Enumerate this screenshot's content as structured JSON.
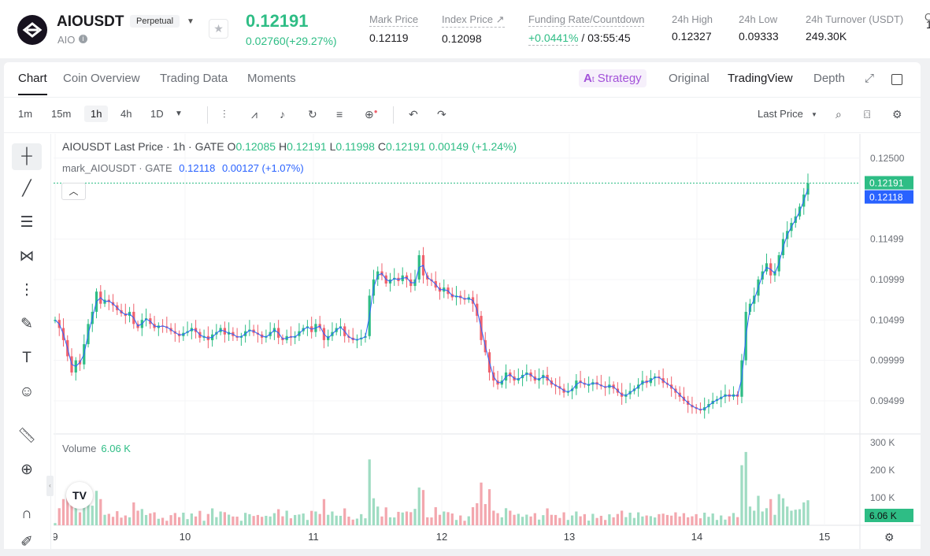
{
  "header": {
    "symbol": "AIOUSDT",
    "badge": "Perpetual",
    "sub": "AIO",
    "price": "0.12191",
    "change": "0.02760(+29.27%)",
    "stats": [
      {
        "label": "Mark Price",
        "value": "0.12119"
      },
      {
        "label": "Index Price ↗",
        "value": "0.12098"
      },
      {
        "label": "Funding Rate/Countdown",
        "value_green": "+0.0441%",
        "value_rest": " / 03:55:45"
      },
      {
        "label": "24h High",
        "value": "0.12327"
      },
      {
        "label": "24h Low",
        "value": "0.09333"
      },
      {
        "label": "24h Turnover (USDT)",
        "value": "249.30K"
      },
      {
        "label": "",
        "value": "1"
      }
    ],
    "right_cut": "C"
  },
  "tabs": {
    "left": [
      "Chart",
      "Coin Overview",
      "Trading Data",
      "Moments"
    ],
    "strategy": "Strategy",
    "right": [
      "Original",
      "TradingView",
      "Depth"
    ]
  },
  "toolbar": {
    "timeframes": [
      "1m",
      "15m",
      "1h",
      "4h",
      "1D"
    ],
    "price_source": "Last Price"
  },
  "legend": {
    "title": "AIOUSDT Last Price · 1h · GATE",
    "o_label": "O",
    "o": "0.12085",
    "h_label": "H",
    "h": "0.12191",
    "l_label": "L",
    "l": "0.11998",
    "c_label": "C",
    "c": "0.12191",
    "chg": "0.00149 (+1.24%)",
    "mark_title": "mark_AIOUSDT · GATE",
    "mark_value": "0.12118",
    "mark_chg": "0.00127 (+1.07%)",
    "volume_label": "Volume",
    "volume_value": "6.06 K",
    "tv_logo": "TV"
  },
  "colors": {
    "up": "#2ebd85",
    "down": "#f0616d",
    "mark_line": "#2962ff",
    "accent_purple": "#a352d9"
  },
  "chart_data": {
    "type": "candlestick",
    "symbol": "AIOUSDT",
    "interval": "1h",
    "y_ticks": [
      "0.12500",
      "0.11499",
      "0.10999",
      "0.10499",
      "0.09999",
      "0.09499"
    ],
    "y_range": [
      0.091,
      0.128
    ],
    "last_price_label": "0.12191",
    "mark_price_label": "0.12118",
    "volume_ticks": [
      "300 K",
      "200 K",
      "100 K"
    ],
    "volume_last_label": "6.06 K",
    "volume_max": 320,
    "x_ticks": [
      "9",
      "10",
      "11",
      "12",
      "13",
      "14",
      "15"
    ],
    "candles_close": [
      0.105,
      0.104,
      0.1025,
      0.1005,
      0.0985,
      0.1,
      0.0995,
      0.102,
      0.1045,
      0.106,
      0.1085,
      0.107,
      0.1075,
      0.1072,
      0.1068,
      0.1062,
      0.1058,
      0.1055,
      0.106,
      0.1045,
      0.104,
      0.105,
      0.1052,
      0.1045,
      0.104,
      0.1043,
      0.1042,
      0.104,
      0.1036,
      0.1033,
      0.103,
      0.1034,
      0.1036,
      0.104,
      0.1035,
      0.1028,
      0.103,
      0.1025,
      0.1032,
      0.1035,
      0.104,
      0.1032,
      0.1035,
      0.103,
      0.1028,
      0.103,
      0.1036,
      0.1038,
      0.1034,
      0.1032,
      0.1028,
      0.103,
      0.1035,
      0.104,
      0.1028,
      0.1025,
      0.103,
      0.1028,
      0.103,
      0.1036,
      0.104,
      0.1042,
      0.1035,
      0.1045,
      0.104,
      0.1025,
      0.103,
      0.1035,
      0.104,
      0.1042,
      0.103,
      0.1028,
      0.1025,
      0.1026,
      0.1028,
      0.103,
      0.108,
      0.11,
      0.111,
      0.1105,
      0.1095,
      0.11,
      0.1102,
      0.1098,
      0.1105,
      0.11,
      0.1092,
      0.11,
      0.113,
      0.1105,
      0.11,
      0.1098,
      0.109,
      0.1085,
      0.109,
      0.1082,
      0.1078,
      0.108,
      0.1077,
      0.1075,
      0.1078,
      0.107,
      0.1055,
      0.1025,
      0.101,
      0.0985,
      0.0975,
      0.097,
      0.0975,
      0.0985,
      0.098,
      0.0975,
      0.0978,
      0.0982,
      0.0985,
      0.098,
      0.0975,
      0.0978,
      0.0982,
      0.0975,
      0.097,
      0.0968,
      0.0965,
      0.096,
      0.0962,
      0.0965,
      0.0975,
      0.0972,
      0.097,
      0.097,
      0.0973,
      0.097,
      0.0968,
      0.0966,
      0.097,
      0.0965,
      0.096,
      0.0955,
      0.0958,
      0.0962,
      0.0965,
      0.097,
      0.0975,
      0.0972,
      0.0978,
      0.098,
      0.0978,
      0.0972,
      0.097,
      0.0965,
      0.096,
      0.0955,
      0.095,
      0.0945,
      0.0942,
      0.094,
      0.0938,
      0.0942,
      0.0946,
      0.095,
      0.0952,
      0.0955,
      0.0958,
      0.0955,
      0.0958,
      0.0955,
      0.1,
      0.106,
      0.107,
      0.108,
      0.11,
      0.111,
      0.112,
      0.1105,
      0.111,
      0.113,
      0.115,
      0.116,
      0.117,
      0.1178,
      0.119,
      0.1205,
      0.1219
    ]
  }
}
